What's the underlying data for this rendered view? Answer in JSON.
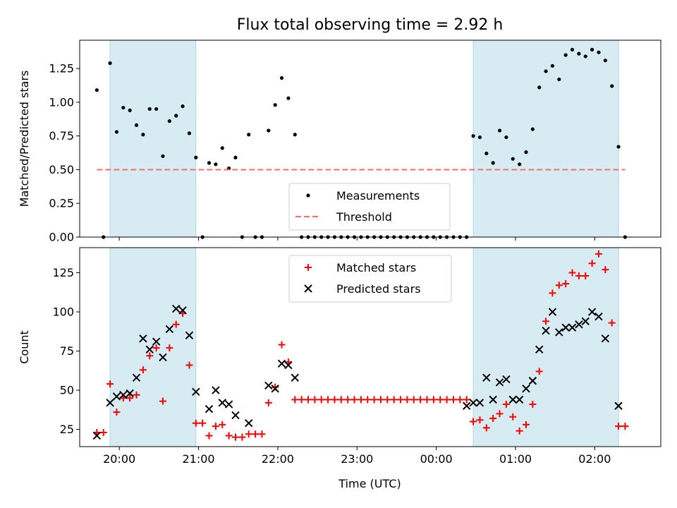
{
  "chart_data": {
    "type": "scatter",
    "title": "Flux total observing time = 2.92 h",
    "xlabel": "Time (UTC)",
    "x_ticks": [
      "20:00",
      "21:00",
      "22:00",
      "23:00",
      "00:00",
      "01:00",
      "02:00"
    ],
    "x_range": [
      "19:30",
      "02:50"
    ],
    "shaded_intervals": [
      [
        "19:53",
        "20:58"
      ],
      [
        "00:28",
        "02:18"
      ]
    ],
    "shade_color": "#add8e6",
    "panels": [
      {
        "ylabel": "Matched/Predicted stars",
        "ylim": [
          0,
          1.46
        ],
        "y_ticks": [
          "0.00",
          "0.25",
          "0.50",
          "0.75",
          "1.00",
          "1.25"
        ],
        "legend_position": "lower-center",
        "series": [
          {
            "name": "Measurements",
            "marker": "dot",
            "color": "#000000",
            "points": [
              [
                "19:43",
                1.09
              ],
              [
                "19:48",
                0.0
              ],
              [
                "19:53",
                1.29
              ],
              [
                "19:58",
                0.78
              ],
              [
                "20:03",
                0.96
              ],
              [
                "20:08",
                0.94
              ],
              [
                "20:13",
                0.83
              ],
              [
                "20:18",
                0.76
              ],
              [
                "20:23",
                0.95
              ],
              [
                "20:28",
                0.95
              ],
              [
                "20:33",
                0.6
              ],
              [
                "20:38",
                0.86
              ],
              [
                "20:43",
                0.9
              ],
              [
                "20:48",
                0.97
              ],
              [
                "20:53",
                0.77
              ],
              [
                "20:58",
                0.59
              ],
              [
                "21:03",
                0.0
              ],
              [
                "21:08",
                0.55
              ],
              [
                "21:13",
                0.54
              ],
              [
                "21:18",
                0.66
              ],
              [
                "21:23",
                0.51
              ],
              [
                "21:28",
                0.59
              ],
              [
                "21:33",
                0.0
              ],
              [
                "21:38",
                0.76
              ],
              [
                "21:43",
                0.0
              ],
              [
                "21:48",
                0.0
              ],
              [
                "21:53",
                0.79
              ],
              [
                "21:58",
                0.98
              ],
              [
                "22:03",
                1.18
              ],
              [
                "22:08",
                1.03
              ],
              [
                "22:13",
                0.76
              ],
              [
                "22:18",
                0.0
              ],
              [
                "22:23",
                0.0
              ],
              [
                "22:28",
                0.0
              ],
              [
                "22:33",
                0.0
              ],
              [
                "22:38",
                0.0
              ],
              [
                "22:43",
                0.0
              ],
              [
                "22:48",
                0.0
              ],
              [
                "22:53",
                0.0
              ],
              [
                "22:58",
                0.0
              ],
              [
                "23:03",
                0.0
              ],
              [
                "23:08",
                0.0
              ],
              [
                "23:13",
                0.0
              ],
              [
                "23:18",
                0.0
              ],
              [
                "23:23",
                0.0
              ],
              [
                "23:28",
                0.0
              ],
              [
                "23:33",
                0.0
              ],
              [
                "23:38",
                0.0
              ],
              [
                "23:43",
                0.0
              ],
              [
                "23:48",
                0.0
              ],
              [
                "23:53",
                0.0
              ],
              [
                "23:58",
                0.0
              ],
              [
                "00:03",
                0.0
              ],
              [
                "00:08",
                0.0
              ],
              [
                "00:13",
                0.0
              ],
              [
                "00:18",
                0.0
              ],
              [
                "00:23",
                0.0
              ],
              [
                "00:28",
                0.75
              ],
              [
                "00:33",
                0.74
              ],
              [
                "00:38",
                0.62
              ],
              [
                "00:43",
                0.55
              ],
              [
                "00:48",
                0.79
              ],
              [
                "00:53",
                0.74
              ],
              [
                "00:58",
                0.58
              ],
              [
                "01:03",
                0.54
              ],
              [
                "01:08",
                0.63
              ],
              [
                "01:13",
                0.8
              ],
              [
                "01:18",
                1.11
              ],
              [
                "01:23",
                1.23
              ],
              [
                "01:28",
                1.27
              ],
              [
                "01:33",
                1.17
              ],
              [
                "01:38",
                1.35
              ],
              [
                "01:43",
                1.39
              ],
              [
                "01:48",
                1.36
              ],
              [
                "01:53",
                1.34
              ],
              [
                "01:58",
                1.39
              ],
              [
                "02:03",
                1.37
              ],
              [
                "02:08",
                1.31
              ],
              [
                "02:13",
                1.12
              ],
              [
                "02:18",
                0.67
              ],
              [
                "02:23",
                0.0
              ]
            ]
          },
          {
            "name": "Threshold",
            "marker": "dashed-line",
            "color": "#ff6b6b",
            "points": [
              [
                "19:43",
                0.5
              ],
              [
                "02:23",
                0.5
              ]
            ]
          }
        ]
      },
      {
        "ylabel": "Count",
        "ylim": [
          14,
          141
        ],
        "y_ticks": [
          "25",
          "50",
          "75",
          "100",
          "125"
        ],
        "legend_position": "upper-center",
        "series": [
          {
            "name": "Matched stars",
            "marker": "plus",
            "color": "#ff0000",
            "points": [
              [
                "19:43",
                23
              ],
              [
                "19:48",
                23
              ],
              [
                "19:53",
                54
              ],
              [
                "19:58",
                36
              ],
              [
                "20:03",
                45
              ],
              [
                "20:08",
                45
              ],
              [
                "20:13",
                47
              ],
              [
                "20:18",
                63
              ],
              [
                "20:23",
                72
              ],
              [
                "20:28",
                77
              ],
              [
                "20:33",
                43
              ],
              [
                "20:38",
                77
              ],
              [
                "20:43",
                92
              ],
              [
                "20:48",
                99
              ],
              [
                "20:53",
                66
              ],
              [
                "20:58",
                29
              ],
              [
                "21:03",
                29
              ],
              [
                "21:08",
                21
              ],
              [
                "21:13",
                27
              ],
              [
                "21:18",
                28
              ],
              [
                "21:23",
                21
              ],
              [
                "21:28",
                20
              ],
              [
                "21:33",
                20
              ],
              [
                "21:38",
                22
              ],
              [
                "21:43",
                22
              ],
              [
                "21:48",
                22
              ],
              [
                "21:53",
                42
              ],
              [
                "21:58",
                52
              ],
              [
                "22:03",
                79
              ],
              [
                "22:08",
                68
              ],
              [
                "22:13",
                44
              ],
              [
                "22:18",
                44
              ],
              [
                "22:23",
                44
              ],
              [
                "22:28",
                44
              ],
              [
                "22:33",
                44
              ],
              [
                "22:38",
                44
              ],
              [
                "22:43",
                44
              ],
              [
                "22:48",
                44
              ],
              [
                "22:53",
                44
              ],
              [
                "22:58",
                44
              ],
              [
                "23:03",
                44
              ],
              [
                "23:08",
                44
              ],
              [
                "23:13",
                44
              ],
              [
                "23:18",
                44
              ],
              [
                "23:23",
                44
              ],
              [
                "23:28",
                44
              ],
              [
                "23:33",
                44
              ],
              [
                "23:38",
                44
              ],
              [
                "23:43",
                44
              ],
              [
                "23:48",
                44
              ],
              [
                "23:53",
                44
              ],
              [
                "23:58",
                44
              ],
              [
                "00:03",
                44
              ],
              [
                "00:08",
                44
              ],
              [
                "00:13",
                44
              ],
              [
                "00:18",
                44
              ],
              [
                "00:23",
                44
              ],
              [
                "00:28",
                30
              ],
              [
                "00:33",
                31
              ],
              [
                "00:38",
                26
              ],
              [
                "00:43",
                32
              ],
              [
                "00:48",
                35
              ],
              [
                "00:53",
                41
              ],
              [
                "00:58",
                33
              ],
              [
                "01:03",
                24
              ],
              [
                "01:08",
                28
              ],
              [
                "01:13",
                41
              ],
              [
                "01:18",
                62
              ],
              [
                "01:23",
                94
              ],
              [
                "01:28",
                112
              ],
              [
                "01:33",
                117
              ],
              [
                "01:38",
                118
              ],
              [
                "01:43",
                125
              ],
              [
                "01:48",
                123
              ],
              [
                "01:53",
                123
              ],
              [
                "01:58",
                131
              ],
              [
                "02:03",
                137
              ],
              [
                "02:08",
                127
              ],
              [
                "02:13",
                93
              ],
              [
                "02:18",
                27
              ],
              [
                "02:23",
                27
              ]
            ]
          },
          {
            "name": "Predicted stars",
            "marker": "x",
            "color": "#000000",
            "points": [
              [
                "19:43",
                21
              ],
              [
                "19:53",
                42
              ],
              [
                "19:58",
                46
              ],
              [
                "20:03",
                47
              ],
              [
                "20:08",
                48
              ],
              [
                "20:13",
                58
              ],
              [
                "20:18",
                83
              ],
              [
                "20:23",
                76
              ],
              [
                "20:28",
                81
              ],
              [
                "20:33",
                71
              ],
              [
                "20:38",
                89
              ],
              [
                "20:43",
                102
              ],
              [
                "20:48",
                101
              ],
              [
                "20:53",
                85
              ],
              [
                "20:58",
                49
              ],
              [
                "21:08",
                38
              ],
              [
                "21:13",
                50
              ],
              [
                "21:18",
                42
              ],
              [
                "21:23",
                41
              ],
              [
                "21:28",
                34
              ],
              [
                "21:38",
                29
              ],
              [
                "21:53",
                53
              ],
              [
                "21:58",
                51
              ],
              [
                "22:03",
                67
              ],
              [
                "22:08",
                66
              ],
              [
                "22:13",
                58
              ],
              [
                "00:23",
                40
              ],
              [
                "00:28",
                42
              ],
              [
                "00:33",
                42
              ],
              [
                "00:38",
                58
              ],
              [
                "00:43",
                44
              ],
              [
                "00:48",
                55
              ],
              [
                "00:53",
                57
              ],
              [
                "00:58",
                44
              ],
              [
                "01:03",
                44
              ],
              [
                "01:08",
                51
              ],
              [
                "01:13",
                56
              ],
              [
                "01:18",
                76
              ],
              [
                "01:23",
                88
              ],
              [
                "01:28",
                100
              ],
              [
                "01:33",
                87
              ],
              [
                "01:38",
                90
              ],
              [
                "01:43",
                90
              ],
              [
                "01:48",
                92
              ],
              [
                "01:53",
                94
              ],
              [
                "01:58",
                100
              ],
              [
                "02:03",
                97
              ],
              [
                "02:08",
                83
              ],
              [
                "02:18",
                40
              ]
            ]
          }
        ]
      }
    ]
  }
}
